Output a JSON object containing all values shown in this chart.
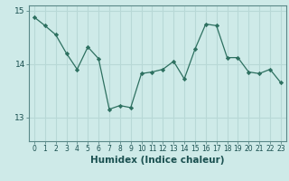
{
  "x": [
    0,
    1,
    2,
    3,
    4,
    5,
    6,
    7,
    8,
    9,
    10,
    11,
    12,
    13,
    14,
    15,
    16,
    17,
    18,
    19,
    20,
    21,
    22,
    23
  ],
  "y": [
    14.88,
    14.72,
    14.55,
    14.2,
    13.9,
    14.32,
    14.1,
    13.15,
    13.22,
    13.18,
    13.82,
    13.85,
    13.9,
    14.05,
    13.72,
    14.28,
    14.75,
    14.72,
    14.12,
    14.12,
    13.85,
    13.82,
    13.9,
    13.65
  ],
  "line_color": "#2d7060",
  "marker": "D",
  "marker_size": 2.2,
  "bg_color": "#ceeae8",
  "grid_color": "#b8d8d6",
  "xlabel": "Humidex (Indice chaleur)",
  "ylim": [
    12.55,
    15.1
  ],
  "yticks": [
    13,
    14,
    15
  ],
  "xlim": [
    -0.5,
    23.5
  ],
  "xtick_labels": [
    "0",
    "1",
    "2",
    "3",
    "4",
    "5",
    "6",
    "7",
    "8",
    "9",
    "10",
    "11",
    "12",
    "13",
    "14",
    "15",
    "16",
    "17",
    "18",
    "19",
    "20",
    "21",
    "22",
    "23"
  ],
  "xlabel_fontsize": 7.5,
  "xlabel_color": "#1a5050",
  "tick_color": "#1a5050",
  "spine_color": "#5a8888"
}
